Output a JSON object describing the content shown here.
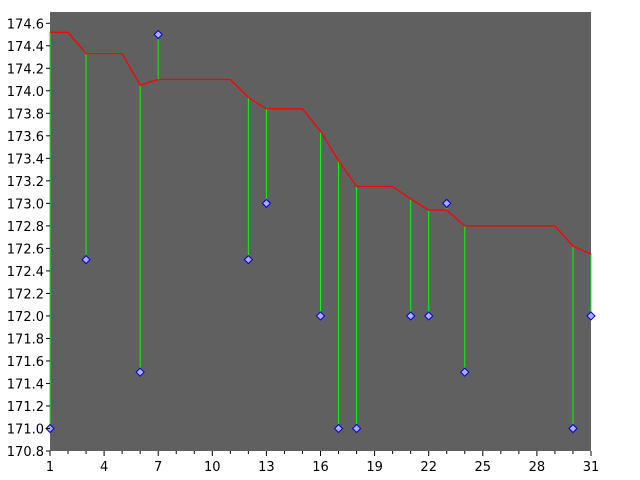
{
  "chart_data": {
    "type": "line",
    "title": "",
    "xlabel": "",
    "ylabel": "",
    "xlim": [
      1,
      31
    ],
    "ylim": [
      170.8,
      174.7
    ],
    "x_ticks": [
      1,
      4,
      7,
      10,
      13,
      16,
      19,
      22,
      25,
      28,
      31
    ],
    "y_ticks": [
      170.8,
      171.0,
      171.2,
      171.4,
      171.6,
      171.8,
      172.0,
      172.2,
      172.4,
      172.6,
      172.8,
      173.0,
      173.2,
      173.4,
      173.6,
      173.8,
      174.0,
      174.2,
      174.4,
      174.6
    ],
    "grid": false,
    "colors": {
      "plot_background": "#606060",
      "trend_line": "#ff0000",
      "stems": "#00ff00",
      "markers": "#aaaaff",
      "marker_edge": "#0000cc"
    },
    "trend_series": {
      "x": [
        1,
        2,
        3,
        4,
        5,
        6,
        7,
        8,
        9,
        10,
        11,
        12,
        13,
        14,
        15,
        16,
        17,
        18,
        19,
        20,
        21,
        22,
        23,
        24,
        25,
        26,
        27,
        28,
        29,
        30,
        31
      ],
      "y": [
        174.52,
        174.52,
        174.33,
        174.33,
        174.33,
        174.05,
        174.1,
        174.1,
        174.1,
        174.1,
        174.1,
        173.94,
        173.84,
        173.84,
        173.84,
        173.64,
        173.38,
        173.15,
        173.15,
        173.15,
        173.04,
        172.94,
        172.94,
        172.8,
        172.8,
        172.8,
        172.8,
        172.8,
        172.8,
        172.62,
        172.55
      ]
    },
    "points": {
      "x": [
        1,
        3,
        6,
        7,
        12,
        13,
        16,
        17,
        18,
        21,
        22,
        23,
        24,
        30,
        31
      ],
      "y": [
        171.0,
        172.5,
        171.5,
        174.5,
        172.5,
        173.0,
        172.0,
        171.0,
        171.0,
        172.0,
        172.0,
        173.0,
        171.5,
        171.0,
        172.0
      ]
    }
  }
}
